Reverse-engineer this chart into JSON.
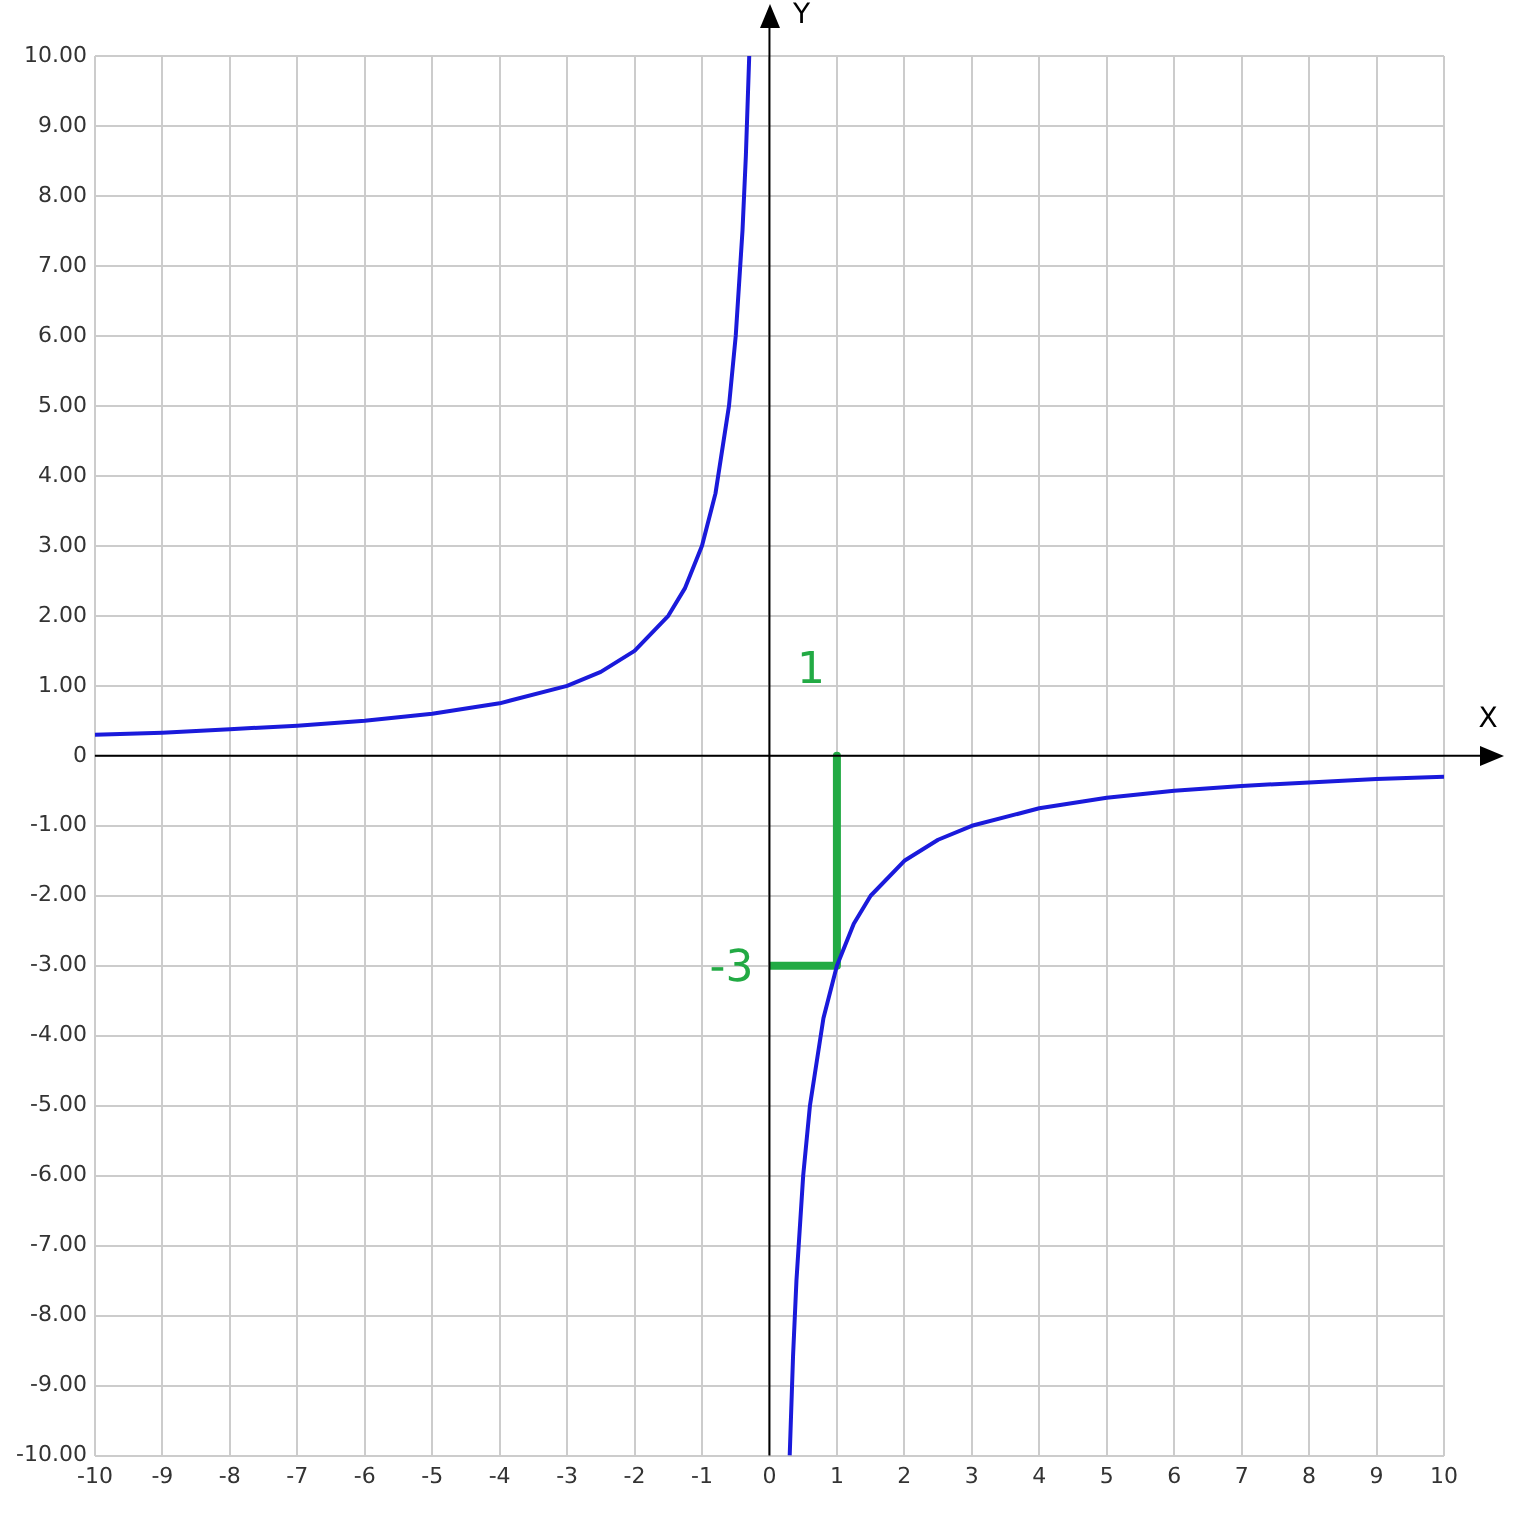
{
  "chart_data": {
    "type": "line",
    "xlabel": "X",
    "ylabel": "Y",
    "xlim": [
      -10,
      10
    ],
    "ylim": [
      -10,
      10
    ],
    "xticks": [
      -10,
      -9,
      -8,
      -7,
      -6,
      -5,
      -4,
      -3,
      -2,
      -1,
      0,
      1,
      2,
      3,
      4,
      5,
      6,
      7,
      8,
      9,
      10
    ],
    "yticks": [
      {
        "value": -10,
        "label": "-10.00"
      },
      {
        "value": -9,
        "label": "-9.00"
      },
      {
        "value": -8,
        "label": "-8.00"
      },
      {
        "value": -7,
        "label": "-7.00"
      },
      {
        "value": -6,
        "label": "-6.00"
      },
      {
        "value": -5,
        "label": "-5.00"
      },
      {
        "value": -4,
        "label": "-4.00"
      },
      {
        "value": -3,
        "label": "-3.00"
      },
      {
        "value": -2,
        "label": "-2.00"
      },
      {
        "value": -1,
        "label": "-1.00"
      },
      0,
      {
        "value": 1,
        "label": "1.00"
      },
      {
        "value": 2,
        "label": "2.00"
      },
      {
        "value": 3,
        "label": "3.00"
      },
      {
        "value": 4,
        "label": "4.00"
      },
      {
        "value": 5,
        "label": "5.00"
      },
      {
        "value": 6,
        "label": "6.00"
      },
      {
        "value": 7,
        "label": "7.00"
      },
      {
        "value": 8,
        "label": "8.00"
      },
      {
        "value": 9,
        "label": "9.00"
      },
      {
        "value": 10,
        "label": "10.00"
      }
    ],
    "grid": true,
    "legend": false,
    "marker": "none",
    "line_style": "solid",
    "series": [
      {
        "color": "#1a1adb",
        "x": [
          -10,
          -9,
          -8,
          -7,
          -6,
          -5,
          -4,
          -3,
          -2.5,
          -2,
          -1.5,
          -1.25,
          -1,
          -0.8,
          -0.6,
          -0.5,
          -0.4,
          -0.35,
          -0.3
        ],
        "values": [
          0.3,
          0.33,
          0.38,
          0.43,
          0.5,
          0.6,
          0.75,
          1,
          1.2,
          1.5,
          2,
          2.4,
          3,
          3.75,
          5,
          6,
          7.5,
          8.57,
          10
        ]
      },
      {
        "color": "#1a1adb",
        "x": [
          0.3,
          0.35,
          0.4,
          0.5,
          0.6,
          0.8,
          1,
          1.25,
          1.5,
          2,
          2.5,
          3,
          4,
          5,
          6,
          7,
          8,
          9,
          10
        ],
        "values": [
          -10,
          -8.57,
          -7.5,
          -6,
          -5,
          -3.75,
          -3,
          -2.4,
          -2,
          -1.5,
          -1.2,
          -1,
          -0.75,
          -0.6,
          -0.5,
          -0.43,
          -0.38,
          -0.33,
          -0.3
        ]
      },
      {
        "color": "#22aa44",
        "x": [
          1,
          1
        ],
        "values": [
          0,
          -3
        ]
      },
      {
        "color": "#22aa44",
        "x": [
          0,
          1
        ],
        "values": [
          -3,
          -3
        ]
      }
    ],
    "annotations": [
      {
        "text": "1",
        "x": 1,
        "y": 0
      },
      {
        "text": "-3",
        "x": 0,
        "y": -3
      }
    ]
  }
}
